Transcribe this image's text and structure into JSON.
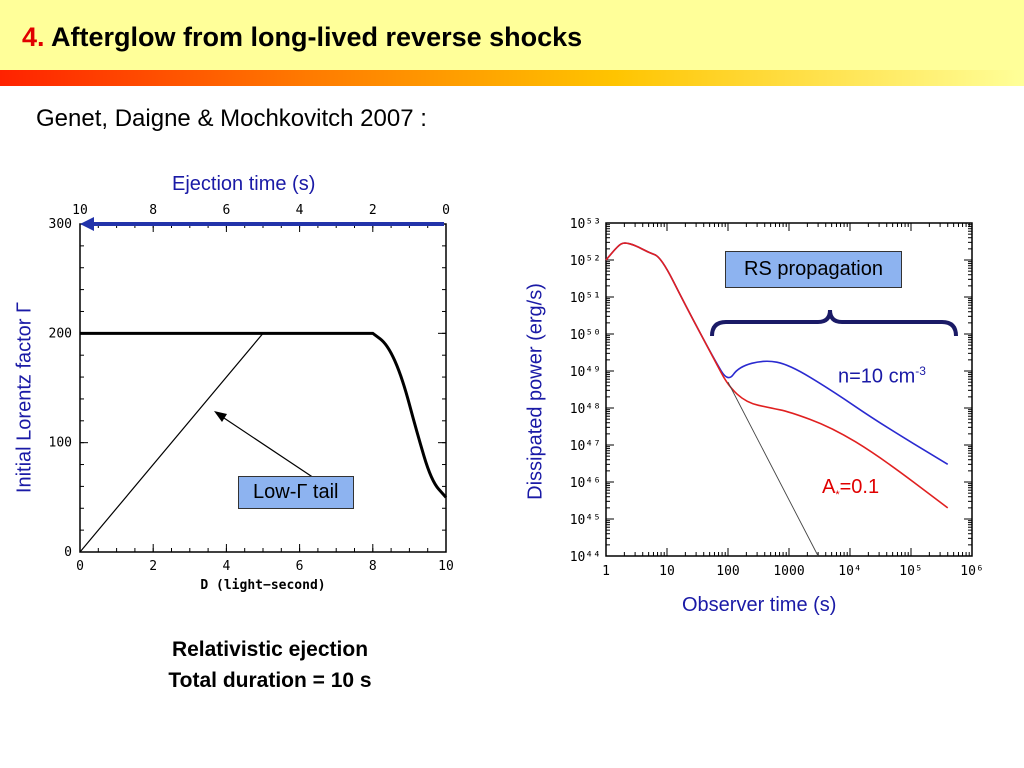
{
  "header": {
    "number": "4.",
    "title": "Afterglow from long-lived reverse shocks"
  },
  "subtitle": "Genet, Daigne & Mochkovitch 2007 :",
  "left_plot": {
    "top_axis_label": "Ejection time (s)",
    "top_ticks": [
      "10",
      "8",
      "6",
      "4",
      "2",
      "0"
    ],
    "y_label": "Initial Lorentz factor Γ",
    "y_ticks": [
      "0",
      "100",
      "200",
      "300"
    ],
    "x_ticks": [
      "0",
      "2",
      "4",
      "6",
      "8",
      "10"
    ],
    "x_label": "D (light−second)",
    "annotation": "Low-Γ tail"
  },
  "right_plot": {
    "y_label": "Dissipated power (erg/s)",
    "x_label": "Observer time (s)",
    "rs_label": "RS propagation",
    "n_label": "n=10 cm",
    "n_sup": "-3",
    "a_label": "A",
    "a_sub": "*",
    "a_value": "=0.1",
    "y_ticks": [
      "10⁴⁴",
      "10⁴⁵",
      "10⁴⁶",
      "10⁴⁷",
      "10⁴⁸",
      "10⁴⁹",
      "10⁵⁰",
      "10⁵¹",
      "10⁵²",
      "10⁵³"
    ],
    "x_ticks": [
      "1",
      "10",
      "100",
      "1000",
      "10⁴",
      "10⁵",
      "10⁶"
    ]
  },
  "caption": {
    "line1": "Relativistic ejection",
    "line2": "Total duration = 10 s"
  },
  "chart_data": [
    {
      "type": "line",
      "xlabel": "D (light−second)",
      "ylabel": "Initial Lorentz factor Γ",
      "xlim": [
        0,
        10
      ],
      "ylim": [
        0,
        300
      ],
      "secondary_x": {
        "label": "Ejection time (s)",
        "range": [
          10,
          0
        ]
      },
      "series": [
        {
          "x": [
            0,
            8,
            8.4,
            8.8,
            9.2,
            9.6,
            10
          ],
          "y": [
            200,
            200,
            190,
            160,
            110,
            65,
            50
          ]
        },
        {
          "x": [
            0,
            5
          ],
          "y": [
            0,
            200
          ]
        }
      ]
    },
    {
      "type": "line",
      "xlabel": "Observer time (s)",
      "ylabel": "Dissipated power (erg/s)",
      "xscale": "log",
      "yscale": "log",
      "xlim": [
        1,
        1000000
      ],
      "ylim": [
        1e+44,
        1e+53
      ],
      "series": [
        {
          "name": "n=10 cm-3",
          "x": [
            1,
            1.6,
            2,
            3,
            5,
            8,
            20,
            60,
            100,
            150,
            400,
            1000,
            5000,
            30000,
            400000
          ],
          "y": [
            1e+52,
            2.5e+52,
            3e+52,
            2.5e+52,
            1.6e+52,
            1.2e+52,
            6e+50,
            2e+49,
            5e+48,
            1.3e+49,
            2e+49,
            1.5e+49,
            3e+48,
            4e+47,
            3e+46
          ]
        },
        {
          "name": "A*=0.1",
          "x": [
            1,
            1.6,
            2,
            3,
            5,
            8,
            20,
            60,
            100,
            200,
            500,
            1000,
            5000,
            30000,
            400000
          ],
          "y": [
            1e+52,
            2.5e+52,
            3e+52,
            2.5e+52,
            1.6e+52,
            1.2e+52,
            6e+50,
            2e+49,
            4e+48,
            1.4e+48,
            1e+48,
            8e+47,
            3e+47,
            5e+46,
            2e+45
          ]
        },
        {
          "x": [
            100,
            3000
          ],
          "y": [
            5e+48,
            1e+44
          ]
        }
      ]
    }
  ]
}
